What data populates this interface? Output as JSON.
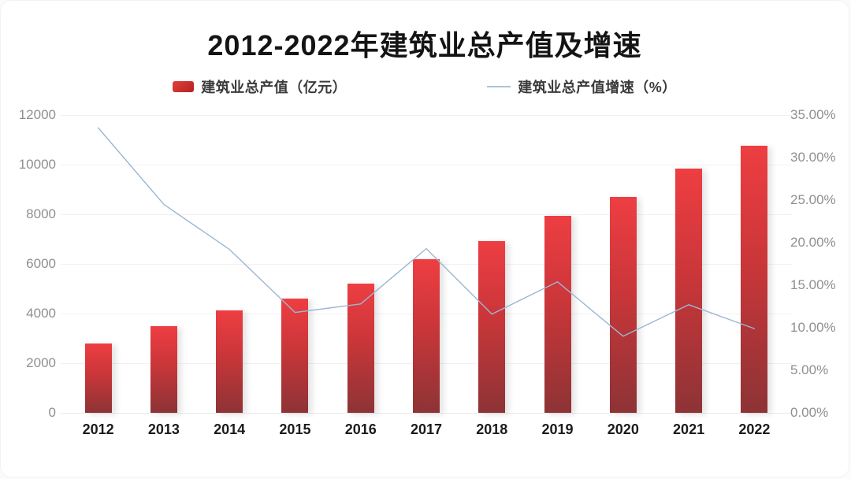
{
  "title": "2012-2022年建筑业总产值及增速",
  "legend": [
    {
      "label": "建筑业总产值（亿元）",
      "type": "bar",
      "color": "#c92b2b"
    },
    {
      "label": "建筑业总产值增速（%）",
      "type": "line",
      "color": "#aac6dc"
    }
  ],
  "chart_data": {
    "type": "bar+line combo",
    "title": "2012-2022年建筑业总产值及增速",
    "categories": [
      "2012",
      "2013",
      "2014",
      "2015",
      "2016",
      "2017",
      "2018",
      "2019",
      "2020",
      "2021",
      "2022"
    ],
    "series": [
      {
        "name": "建筑业总产值（亿元）",
        "type": "bar",
        "axis": "left",
        "values": [
          2780,
          3490,
          4130,
          4600,
          5210,
          6190,
          6920,
          7940,
          8700,
          9840,
          10760
        ]
      },
      {
        "name": "建筑业总产值增速（%）",
        "type": "line",
        "axis": "right",
        "values": [
          33.5,
          24.5,
          19.2,
          11.8,
          12.8,
          19.3,
          11.6,
          15.4,
          9.0,
          12.7,
          9.9
        ]
      }
    ],
    "left_axis": {
      "min": 0,
      "max": 12000,
      "step": 2000,
      "ticks": [
        0,
        2000,
        4000,
        6000,
        8000,
        10000,
        12000
      ],
      "tick_labels": [
        "0",
        "2000",
        "4000",
        "6000",
        "8000",
        "10000",
        "12000"
      ]
    },
    "right_axis": {
      "min": 0,
      "max": 35,
      "step": 5,
      "ticks": [
        0,
        5,
        10,
        15,
        20,
        25,
        30,
        35
      ],
      "tick_labels": [
        "0.00%",
        "5.00%",
        "10.00%",
        "15.00%",
        "20.00%",
        "25.00%",
        "30.00%",
        "35.00%"
      ]
    },
    "grid": "horizontal, aligned to left axis",
    "legend_position": "top"
  },
  "colors": {
    "bar_top": "#ee3e42",
    "bar_bottom": "#8d3336",
    "line": "#9cb6d2",
    "axis_text": "#8f8f8f",
    "title_text": "#141414",
    "gridline": "#f1f1f1",
    "background": "#ffffff"
  }
}
